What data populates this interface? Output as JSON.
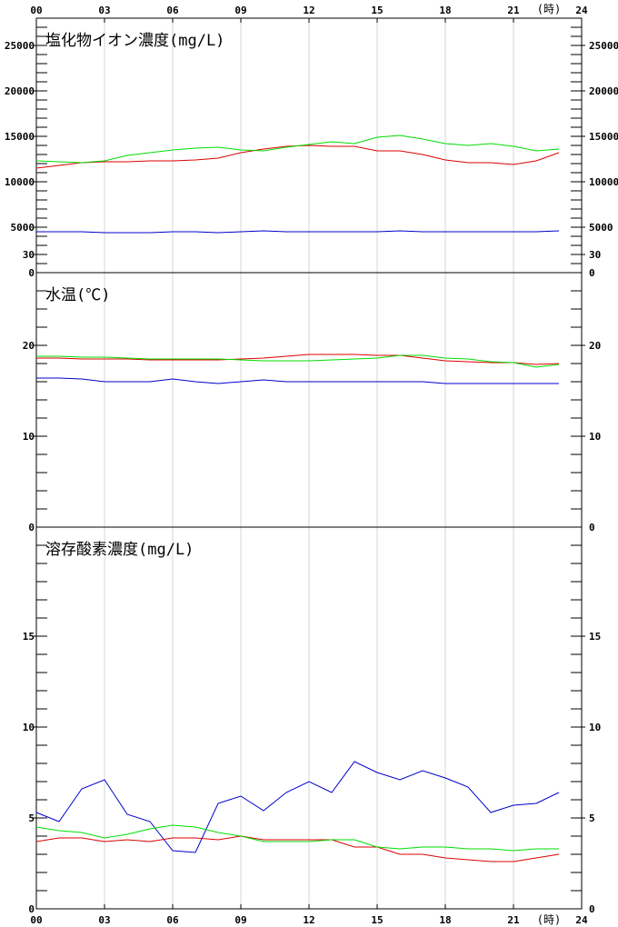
{
  "time_axis": {
    "labels": [
      "00",
      "03",
      "06",
      "09",
      "12",
      "15",
      "18",
      "21",
      "24"
    ],
    "unit": "(時)"
  },
  "chart_data": [
    {
      "type": "line",
      "title": "塩化物イオン濃度(mg/L)",
      "x": [
        0,
        1,
        2,
        3,
        4,
        5,
        6,
        7,
        8,
        9,
        10,
        11,
        12,
        13,
        14,
        15,
        16,
        17,
        18,
        19,
        20,
        21,
        22,
        23
      ],
      "ylim": [
        0,
        28000
      ],
      "yticks": [
        0,
        5000,
        10000,
        15000,
        20000,
        25000
      ],
      "series": [
        {
          "color": "#0000cc",
          "values": [
            4500,
            4500,
            4500,
            4400,
            4400,
            4400,
            4500,
            4500,
            4400,
            4500,
            4600,
            4500,
            4500,
            4500,
            4500,
            4500,
            4600,
            4500,
            4500,
            4500,
            4500,
            4500,
            4500,
            4600
          ]
        },
        {
          "color": "#dd0000",
          "values": [
            11500,
            11800,
            12100,
            12200,
            12200,
            12300,
            12300,
            12400,
            12600,
            13200,
            13600,
            13900,
            14000,
            13900,
            13900,
            13400,
            13400,
            13000,
            12400,
            12100,
            12100,
            11900,
            12300,
            13200
          ]
        },
        {
          "color": "#00dd00",
          "values": [
            12300,
            12200,
            12100,
            12300,
            12900,
            13200,
            13500,
            13700,
            13800,
            13500,
            13400,
            13800,
            14100,
            14400,
            14200,
            14900,
            15100,
            14700,
            14200,
            14000,
            14200,
            13900,
            13400,
            13600
          ]
        }
      ]
    },
    {
      "type": "line",
      "title": "水温(℃)",
      "x": [
        0,
        1,
        2,
        3,
        4,
        5,
        6,
        7,
        8,
        9,
        10,
        11,
        12,
        13,
        14,
        15,
        16,
        17,
        18,
        19,
        20,
        21,
        22,
        23
      ],
      "ylim": [
        0,
        28
      ],
      "yticks": [
        0,
        10,
        20,
        30
      ],
      "series": [
        {
          "color": "#0000cc",
          "values": [
            16.4,
            16.4,
            16.3,
            16.0,
            16.0,
            16.0,
            16.3,
            16.0,
            15.8,
            16.0,
            16.2,
            16.0,
            16.0,
            16.0,
            16.0,
            16.0,
            16.0,
            16.0,
            15.8,
            15.8,
            15.8,
            15.8,
            15.8,
            15.8
          ]
        },
        {
          "color": "#dd0000",
          "values": [
            18.6,
            18.6,
            18.5,
            18.5,
            18.5,
            18.4,
            18.4,
            18.4,
            18.4,
            18.5,
            18.6,
            18.8,
            19.0,
            19.0,
            19.0,
            18.9,
            18.9,
            18.6,
            18.3,
            18.2,
            18.1,
            18.1,
            17.9,
            18.0
          ]
        },
        {
          "color": "#00dd00",
          "values": [
            18.8,
            18.8,
            18.7,
            18.7,
            18.6,
            18.5,
            18.5,
            18.5,
            18.5,
            18.4,
            18.3,
            18.3,
            18.3,
            18.4,
            18.5,
            18.6,
            18.9,
            18.9,
            18.6,
            18.5,
            18.2,
            18.1,
            17.6,
            17.9
          ]
        }
      ]
    },
    {
      "type": "line",
      "title": "溶存酸素濃度(mg/L)",
      "x": [
        0,
        1,
        2,
        3,
        4,
        5,
        6,
        7,
        8,
        9,
        10,
        11,
        12,
        13,
        14,
        15,
        16,
        17,
        18,
        19,
        20,
        21,
        22,
        23
      ],
      "ylim": [
        0,
        21
      ],
      "yticks": [
        0,
        5,
        10,
        15
      ],
      "series": [
        {
          "color": "#0000cc",
          "values": [
            5.3,
            4.8,
            6.6,
            7.1,
            5.2,
            4.8,
            3.2,
            3.1,
            5.8,
            6.2,
            5.4,
            6.4,
            7.0,
            6.4,
            8.1,
            7.5,
            7.1,
            7.6,
            7.2,
            6.7,
            5.3,
            5.7,
            5.8,
            6.4
          ]
        },
        {
          "color": "#dd0000",
          "values": [
            3.7,
            3.9,
            3.9,
            3.7,
            3.8,
            3.7,
            3.9,
            3.9,
            3.8,
            4.0,
            3.8,
            3.8,
            3.8,
            3.8,
            3.4,
            3.4,
            3.0,
            3.0,
            2.8,
            2.7,
            2.6,
            2.6,
            2.8,
            3.0
          ]
        },
        {
          "color": "#00dd00",
          "values": [
            4.5,
            4.3,
            4.2,
            3.9,
            4.1,
            4.4,
            4.6,
            4.5,
            4.2,
            4.0,
            3.7,
            3.7,
            3.7,
            3.8,
            3.8,
            3.4,
            3.3,
            3.4,
            3.4,
            3.3,
            3.3,
            3.2,
            3.3,
            3.3
          ]
        }
      ]
    }
  ]
}
